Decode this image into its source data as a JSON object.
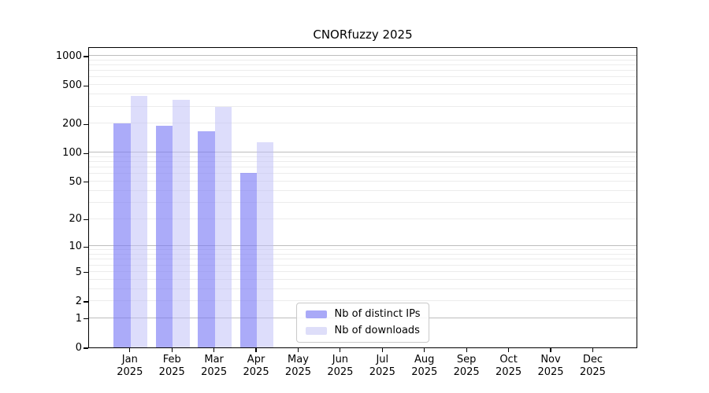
{
  "title": "CNORfuzzy 2025",
  "chart_data": {
    "type": "bar",
    "title": "CNORfuzzy 2025",
    "categories": [
      "Jan",
      "Feb",
      "Mar",
      "Apr",
      "May",
      "Jun",
      "Jul",
      "Aug",
      "Sep",
      "Oct",
      "Nov",
      "Dec"
    ],
    "x_sublabel": "2025",
    "series": [
      {
        "name": "Nb of distinct IPs",
        "color": "#a9a9f7",
        "fill_rgba": "rgba(120,120,245,0.62)",
        "values": [
          202,
          189,
          167,
          62,
          0,
          0,
          0,
          0,
          0,
          0,
          0,
          0
        ]
      },
      {
        "name": "Nb of downloads",
        "color": "#dedef9",
        "fill_rgba": "rgba(190,190,248,0.52)",
        "values": [
          388,
          350,
          300,
          127,
          0,
          0,
          0,
          0,
          0,
          0,
          0,
          0
        ]
      }
    ],
    "y_ticks": [
      0,
      1,
      2,
      5,
      10,
      20,
      50,
      100,
      200,
      500,
      1000
    ],
    "y_scale": "log1p",
    "ylim": [
      0,
      1250
    ],
    "grid": true,
    "legend_position": "lower-center-inside",
    "colors": {
      "grid_major": "#bdbdbd",
      "grid_minor": "#ececec",
      "axis": "#000000"
    }
  }
}
